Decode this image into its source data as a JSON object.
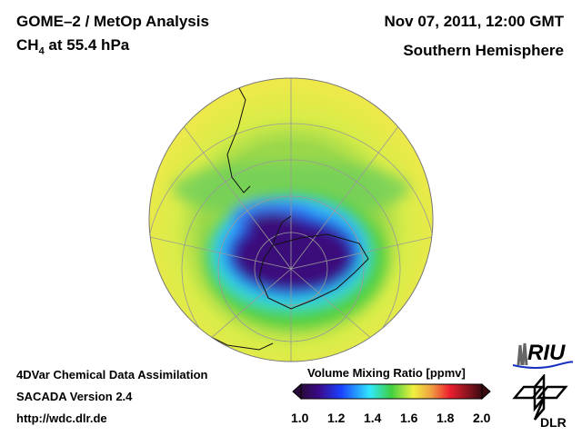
{
  "header": {
    "title_line1": "GOME–2 / MetOp Analysis",
    "species": "CH",
    "species_subscript": "4",
    "level": " at 55.4 hPa",
    "date": "Nov 07, 2011, 12:00 GMT",
    "hemisphere": "Southern Hemisphere"
  },
  "footer": {
    "line1": "4DVar Chemical Data Assimilation",
    "line2": "SACADA Version 2.4",
    "line3": "http://wdc.dlr.de"
  },
  "colorbar": {
    "title": "Volume Mixing Ratio [ppmv]",
    "ticks": [
      "1.0",
      "1.2",
      "1.4",
      "1.6",
      "1.8",
      "2.0"
    ],
    "range": [
      1.0,
      2.0
    ],
    "colors": [
      "#2a0a3a",
      "#3a0a8a",
      "#1a40ff",
      "#30c8ff",
      "#40d040",
      "#f0f040",
      "#f0a040",
      "#f02030",
      "#3a0a10"
    ]
  },
  "logos": {
    "riu": "RIU",
    "dlr": "DLR"
  }
}
